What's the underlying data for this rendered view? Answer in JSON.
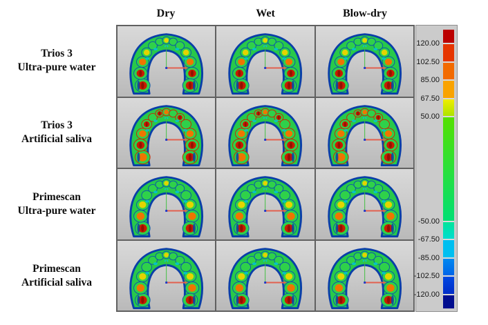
{
  "figure": {
    "column_headers": [
      "Dry",
      "Wet",
      "Blow-dry"
    ],
    "row_labels": [
      {
        "line1": "Trios 3",
        "line2": "Ultra-pure water"
      },
      {
        "line1": "Trios 3",
        "line2": "Artificial saliva"
      },
      {
        "line1": "Primescan",
        "line2": "Ultra-pure water"
      },
      {
        "line1": "Primescan",
        "line2": "Artificial saliva"
      }
    ],
    "cells": [
      {
        "id": "trios3-ultra-pure-water-dry",
        "row": 0,
        "col": 0,
        "profile": "high"
      },
      {
        "id": "trios3-ultra-pure-water-wet",
        "row": 0,
        "col": 1,
        "profile": "high"
      },
      {
        "id": "trios3-ultra-pure-water-blowdry",
        "row": 0,
        "col": 2,
        "profile": "high"
      },
      {
        "id": "trios3-artificial-saliva-dry",
        "row": 1,
        "col": 0,
        "profile": "mixed"
      },
      {
        "id": "trios3-artificial-saliva-wet",
        "row": 1,
        "col": 1,
        "profile": "mixed"
      },
      {
        "id": "trios3-artificial-saliva-blowdry",
        "row": 1,
        "col": 2,
        "profile": "mixed"
      },
      {
        "id": "primescan-ultra-pure-water-dry",
        "row": 2,
        "col": 0,
        "profile": "moderate"
      },
      {
        "id": "primescan-ultra-pure-water-wet",
        "row": 2,
        "col": 1,
        "profile": "moderate"
      },
      {
        "id": "primescan-ultra-pure-water-blowdry",
        "row": 2,
        "col": 2,
        "profile": "moderate"
      },
      {
        "id": "primescan-artificial-saliva-dry",
        "row": 3,
        "col": 0,
        "profile": "moderate"
      },
      {
        "id": "primescan-artificial-saliva-wet",
        "row": 3,
        "col": 1,
        "profile": "moderate"
      },
      {
        "id": "primescan-artificial-saliva-blowdry",
        "row": 3,
        "col": 2,
        "profile": "moderate"
      }
    ]
  },
  "colorbar": {
    "ticks": [
      "120.00",
      "102.50",
      "85.00",
      "67.50",
      "50.00",
      "-50.00",
      "-67.50",
      "-85.00",
      "-102.50",
      "-120.00"
    ],
    "segments": [
      {
        "color": "#bb0000",
        "units": 13.5
      },
      {
        "color": "#e63500",
        "units": 17.5
      },
      {
        "color": "#f26a00",
        "units": 17.5
      },
      {
        "color": "#f9a300",
        "units": 17.5
      },
      {
        "color": "#f2ee00",
        "color2": "#abe300",
        "units": 17.5
      },
      {
        "color": "#55e000",
        "color2": "#00df75",
        "units": 100
      },
      {
        "color": "#00e597",
        "color2": "#00dcd2",
        "units": 17.5
      },
      {
        "color": "#00bff0",
        "units": 17.5
      },
      {
        "color": "#008af0",
        "color2": "#0063e8",
        "units": 17.5
      },
      {
        "color": "#0049e2",
        "color2": "#002cc8",
        "units": 17.5
      },
      {
        "color": "#000d8e",
        "units": 13.5
      }
    ]
  },
  "palette": {
    "arch_base_green": "#28c94a",
    "arch_edge_blue": "#0a3fa8",
    "tooth_red": "#c81c00",
    "tooth_red_core": "#7a0e00",
    "tooth_orange": "#ef7500",
    "tooth_yellow": "#e3d400",
    "tooth_green": "#2fd14a",
    "tooth_cyan": "#00c9da",
    "ring_blue": "#0a57a8",
    "ring_red": "#c82800",
    "axis_y_green": "#3fbf3f",
    "axis_x_red": "#e2604f",
    "axis_origin_blue": "#2038c8",
    "grid_line": "#606060",
    "cell_bg": "#cccccc",
    "panel_bg": "#cbcbcb"
  }
}
